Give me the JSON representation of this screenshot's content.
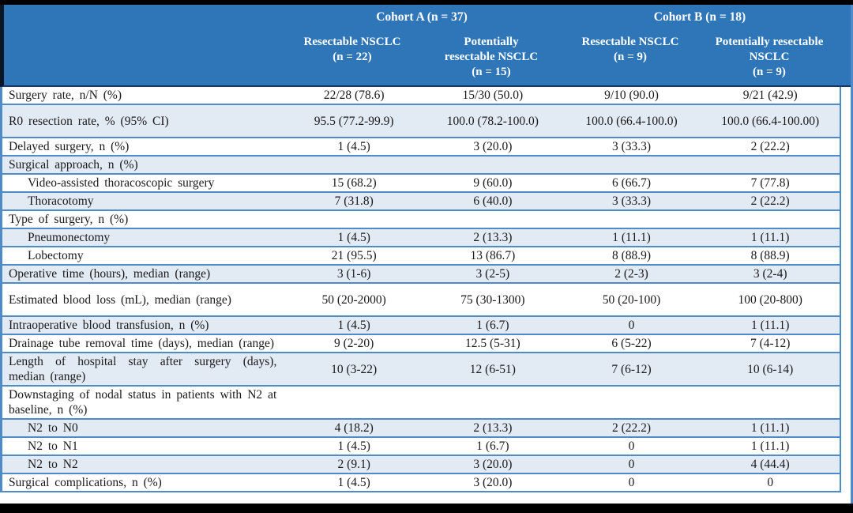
{
  "colors": {
    "frame_black": "#000000",
    "header_bg": "#2F76B8",
    "header_text": "#FFFFFF",
    "header_underline": "#17375E",
    "row_bg": "#FFFFFF",
    "row_alt_bg": "#E2EAF4",
    "border_blue": "#4E8BC8",
    "body_text": "#1A1A1A"
  },
  "table": {
    "cohorts": [
      {
        "label": "Cohort A (n = 37)"
      },
      {
        "label": "Cohort B (n = 18)"
      }
    ],
    "columns": [
      {
        "line1": "Resectable NSCLC",
        "line2": "",
        "n": "(n = 22)"
      },
      {
        "line1": "Potentially",
        "line2": "resectable NSCLC",
        "n": "(n = 15)"
      },
      {
        "line1": "Resectable NSCLC",
        "line2": "",
        "n": "(n = 9)"
      },
      {
        "line1": "Potentially resectable",
        "line2": "NSCLC",
        "n": "(n = 9)"
      }
    ],
    "rows": [
      {
        "label": "Surgery rate, n/N (%)",
        "indent": false,
        "tall": false,
        "values": [
          "22/28 (78.6)",
          "15/30 (50.0)",
          "9/10 (90.0)",
          "9/21 (42.9)"
        ]
      },
      {
        "label": "R0 resection rate, % (95% CI)",
        "indent": false,
        "tall": true,
        "values": [
          "95.5 (77.2-99.9)",
          "100.0 (78.2-100.0)",
          "100.0 (66.4-100.0)",
          "100.0 (66.4-100.00)"
        ]
      },
      {
        "label": "Delayed surgery, n (%)",
        "indent": false,
        "tall": false,
        "values": [
          "1 (4.5)",
          "3 (20.0)",
          "3 (33.3)",
          "2 (22.2)"
        ]
      },
      {
        "label": "Surgical approach, n (%)",
        "indent": false,
        "tall": false,
        "values": [
          "",
          "",
          "",
          ""
        ]
      },
      {
        "label": "Video-assisted thoracoscopic surgery",
        "indent": true,
        "tall": false,
        "values": [
          "15 (68.2)",
          "9 (60.0)",
          "6 (66.7)",
          "7 (77.8)"
        ]
      },
      {
        "label": "Thoracotomy",
        "indent": true,
        "tall": false,
        "values": [
          "7 (31.8)",
          "6 (40.0)",
          "3 (33.3)",
          "2 (22.2)"
        ]
      },
      {
        "label": "Type of surgery, n (%)",
        "indent": false,
        "tall": false,
        "values": [
          "",
          "",
          "",
          ""
        ]
      },
      {
        "label": "Pneumonectomy",
        "indent": true,
        "tall": false,
        "values": [
          "1 (4.5)",
          "2 (13.3)",
          "1 (11.1)",
          "1 (11.1)"
        ]
      },
      {
        "label": "Lobectomy",
        "indent": true,
        "tall": false,
        "values": [
          "21 (95.5)",
          "13 (86.7)",
          "8 (88.9)",
          "8 (88.9)"
        ]
      },
      {
        "label": "Operative time (hours), median (range)",
        "indent": false,
        "tall": false,
        "values": [
          "3 (1-6)",
          "3 (2-5)",
          "2 (2-3)",
          "3 (2-4)"
        ]
      },
      {
        "label": "Estimated blood loss (mL), median (range)",
        "indent": false,
        "tall": true,
        "values": [
          "50 (20-2000)",
          "75 (30-1300)",
          "50 (20-100)",
          "100 (20-800)"
        ]
      },
      {
        "label": "Intraoperative blood transfusion, n (%)",
        "indent": false,
        "tall": false,
        "values": [
          "1 (4.5)",
          "1 (6.7)",
          "0",
          "1 (11.1)"
        ]
      },
      {
        "label": "Drainage tube removal time (days), median (range)",
        "indent": false,
        "tall": false,
        "values": [
          "9 (2-20)",
          "12.5 (5-31)",
          "6 (5-22)",
          "7 (4-12)"
        ]
      },
      {
        "label": "Length of hospital stay after surgery (days), median (range)",
        "indent": false,
        "tall": false,
        "values": [
          "10 (3-22)",
          "12 (6-51)",
          "7 (6-12)",
          "10 (6-14)"
        ]
      },
      {
        "label": "Downstaging of nodal status in patients with N2 at baseline, n (%)",
        "indent": false,
        "tall": false,
        "values": [
          "",
          "",
          "",
          ""
        ]
      },
      {
        "label": "N2 to N0",
        "indent": true,
        "tall": false,
        "values": [
          "4 (18.2)",
          "2 (13.3)",
          "2 (22.2)",
          "1 (11.1)"
        ]
      },
      {
        "label": "N2 to N1",
        "indent": true,
        "tall": false,
        "values": [
          "1 (4.5)",
          "1 (6.7)",
          "0",
          "1 (11.1)"
        ]
      },
      {
        "label": "N2 to N2",
        "indent": true,
        "tall": false,
        "values": [
          "2 (9.1)",
          "3 (20.0)",
          "0",
          "4 (44.4)"
        ]
      },
      {
        "label": "Surgical complications, n (%)",
        "indent": false,
        "tall": false,
        "values": [
          "1 (4.5)",
          "3 (20.0)",
          "0",
          "0"
        ]
      }
    ]
  }
}
